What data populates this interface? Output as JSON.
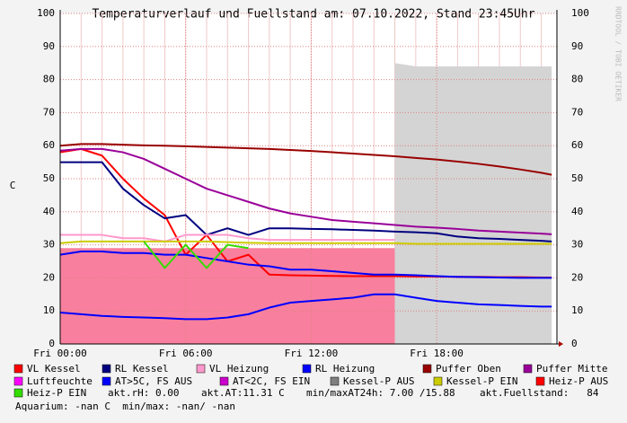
{
  "chart_data": {
    "type": "line",
    "title": "Temperaturverlauf und Fuellstand am: 07.10.2022, Stand 23:45Uhr",
    "y_label": "C",
    "watermark": "RRDTOOL / TOBI OETIKER",
    "x": [
      0,
      1,
      2,
      3,
      4,
      5,
      6,
      7,
      8,
      9,
      10,
      11,
      12,
      13,
      14,
      15,
      16,
      17,
      18,
      19,
      20,
      21,
      22,
      23,
      23.5
    ],
    "xlim": [
      0,
      23.75
    ],
    "xticks": [
      {
        "value": 0,
        "label": "Fri 00:00"
      },
      {
        "value": 6,
        "label": "Fri 06:00"
      },
      {
        "value": 12,
        "label": "Fri 12:00"
      },
      {
        "value": 18,
        "label": "Fri 18:00"
      }
    ],
    "ylim": [
      0,
      100
    ],
    "yticks": [
      0,
      10,
      20,
      30,
      40,
      50,
      60,
      70,
      80,
      90,
      100
    ],
    "grid": true,
    "areas": [
      {
        "color": "#f8809e",
        "values": [
          29,
          29,
          29,
          29,
          29,
          29,
          29,
          29,
          29,
          29,
          29,
          29,
          29,
          29,
          29,
          29,
          29,
          null,
          null,
          null,
          null,
          null,
          null,
          null,
          null
        ]
      },
      {
        "color": "#d4d4d4",
        "values": [
          null,
          null,
          null,
          null,
          null,
          null,
          null,
          null,
          null,
          null,
          null,
          null,
          null,
          null,
          null,
          null,
          85,
          84,
          84,
          84,
          84,
          84,
          84,
          84,
          84
        ]
      }
    ],
    "series": [
      {
        "name": "VL Kessel",
        "color": "#ff0000",
        "values": [
          58,
          59,
          57,
          50,
          44,
          39,
          27,
          33,
          25,
          27,
          21,
          20.8,
          20.7,
          20.6,
          20.5,
          20.5,
          20.5,
          20.4,
          20.4,
          20.3,
          20.3,
          20.2,
          20.2,
          20.1,
          20.1
        ]
      },
      {
        "name": "RL Kessel",
        "color": "#000080",
        "values": [
          55,
          55,
          55,
          47,
          42,
          38,
          39,
          33,
          35,
          33,
          35,
          35,
          34.8,
          34.7,
          34.5,
          34.3,
          34,
          33.8,
          33.5,
          32.5,
          32,
          31.8,
          31.5,
          31.2,
          31
        ]
      },
      {
        "name": "VL Heizung",
        "color": "#ff99cc",
        "values": [
          33,
          33,
          33,
          32,
          32,
          31,
          33,
          33,
          33,
          32,
          31.5,
          31.5,
          31.5,
          31.5,
          31.5,
          31.5,
          31.5,
          null,
          null,
          null,
          null,
          null,
          null,
          null,
          null
        ]
      },
      {
        "name": "RL Heizung",
        "color": "#0000ff",
        "values": [
          27,
          28,
          28,
          27.5,
          27.5,
          27,
          27,
          26,
          25,
          24,
          23.5,
          22.5,
          22.5,
          22,
          21.5,
          21,
          21,
          20.8,
          20.5,
          20.3,
          20.2,
          20.1,
          20,
          20,
          20
        ]
      },
      {
        "name": "Puffer Oben",
        "color": "#990000",
        "values": [
          60,
          60.5,
          60.5,
          60.3,
          60.1,
          60,
          59.8,
          59.6,
          59.4,
          59.2,
          59,
          58.7,
          58.4,
          58,
          57.6,
          57.2,
          56.8,
          56.3,
          55.8,
          55.2,
          54.5,
          53.7,
          52.8,
          51.8,
          51.2
        ]
      },
      {
        "name": "Puffer Mitte",
        "color": "#990099",
        "values": [
          58.5,
          59,
          59,
          58,
          56,
          53,
          50,
          47,
          45,
          43,
          41,
          39.5,
          38.5,
          37.5,
          37,
          36.5,
          36,
          35.5,
          35.2,
          34.8,
          34.3,
          34,
          33.7,
          33.4,
          33.2
        ]
      },
      {
        "name": "Luftfeuchte",
        "color": "#ff00ff",
        "values": [
          null,
          null,
          null,
          null,
          null,
          null,
          null,
          null,
          null,
          null,
          null,
          null,
          null,
          null,
          null,
          null,
          null,
          null,
          null,
          null,
          null,
          null,
          null,
          null,
          null
        ]
      },
      {
        "name": "AT>5C, FS AUS",
        "color": "#0000ff",
        "values": [
          9.5,
          9,
          8.5,
          8.2,
          8,
          7.8,
          7.5,
          7.5,
          8,
          9,
          11,
          12.5,
          13,
          13.5,
          14,
          15,
          15,
          14,
          13,
          12.5,
          12,
          11.8,
          11.5,
          11.3,
          11.3
        ]
      },
      {
        "name": "AT<2C, FS EIN",
        "color": "#cc00cc",
        "values": [
          null,
          null,
          null,
          null,
          null,
          null,
          null,
          null,
          null,
          null,
          null,
          null,
          null,
          null,
          null,
          null,
          null,
          null,
          null,
          null,
          null,
          null,
          null,
          null,
          null
        ]
      },
      {
        "name": "Kessel-P AUS",
        "color": "#808080",
        "values": [
          null,
          null,
          null,
          null,
          null,
          null,
          null,
          null,
          null,
          null,
          null,
          null,
          null,
          null,
          null,
          null,
          null,
          null,
          null,
          null,
          null,
          null,
          null,
          null,
          null
        ]
      },
      {
        "name": "Kessel-P EIN",
        "color": "#cccc00",
        "values": [
          30.5,
          31,
          31,
          31,
          31,
          31,
          31,
          31,
          30.8,
          30.6,
          30.5,
          30.5,
          30.5,
          30.5,
          30.5,
          30.5,
          30.5,
          30.3,
          30.3,
          30.3,
          30.3,
          30.3,
          30.3,
          30.3,
          30.3
        ]
      },
      {
        "name": "Heiz-P AUS",
        "color": "#ff0000",
        "values": [
          null,
          null,
          null,
          null,
          null,
          null,
          null,
          null,
          null,
          null,
          null,
          null,
          null,
          null,
          null,
          null,
          null,
          null,
          null,
          null,
          null,
          null,
          null,
          null,
          null
        ]
      },
      {
        "name": "Heiz-P EIN",
        "color": "#33dd00",
        "values": [
          null,
          null,
          null,
          null,
          31,
          23,
          30,
          23,
          30,
          29,
          null,
          null,
          null,
          null,
          null,
          null,
          null,
          null,
          null,
          null,
          null,
          null,
          null,
          null,
          null
        ]
      }
    ],
    "footer": [
      "akt.rH: 0.00",
      "akt.AT:11.31 C",
      "min/maxAT24h: 7.00 /15.88",
      "akt.Fuellstand:   84",
      "Aquarium: -nan C  min/max: -nan/ -nan"
    ]
  }
}
